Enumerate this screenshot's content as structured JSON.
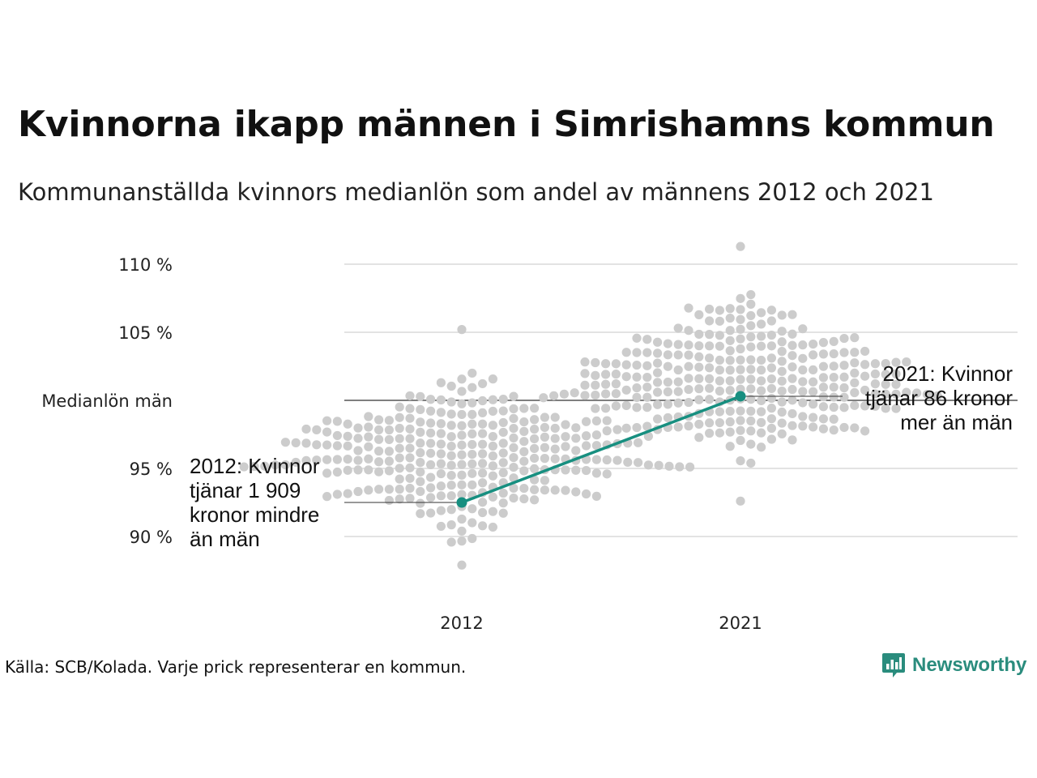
{
  "title": "Kvinnorna ikapp männen i Simrishamns kommun",
  "subtitle": "Kommunanställda kvinnors medianlön som andel av männens 2012 och 2021",
  "source": "Källa: SCB/Kolada. Varje prick representerar en kommun.",
  "brand": "Newsworthy",
  "colors": {
    "highlight": "#178f80",
    "dots": "#cccccc",
    "grid": "#e3e3e3",
    "reference": "#333333"
  },
  "chart_data": {
    "type": "scatter",
    "categories": [
      "2012",
      "2021"
    ],
    "ylim": [
      86,
      112
    ],
    "yticks": [
      {
        "value": 110,
        "label": "110 %"
      },
      {
        "value": 105,
        "label": "105 %"
      },
      {
        "value": 95,
        "label": "95 %"
      },
      {
        "value": 90,
        "label": "90 %"
      }
    ],
    "reference_line": {
      "value": 100,
      "label": "Medianlön män"
    },
    "highlight": {
      "points": [
        {
          "category": "2012",
          "value": 92.5
        },
        {
          "category": "2021",
          "value": 100.3
        }
      ]
    },
    "annotations": [
      {
        "category": "2012",
        "lines": [
          "2012: Kvinnor",
          "tjänar 1 909",
          "kronor mindre",
          "än män"
        ]
      },
      {
        "category": "2021",
        "lines": [
          "2021: Kvinnor",
          "tjänar 86 kronor",
          "mer än män"
        ]
      }
    ],
    "distribution": [
      {
        "category": "2012",
        "min": 87.9,
        "max": 105.2,
        "center": 96.0,
        "count": 290
      },
      {
        "category": "2021",
        "min": 92.6,
        "max": 111.3,
        "center": 101.5,
        "count": 290
      }
    ]
  }
}
